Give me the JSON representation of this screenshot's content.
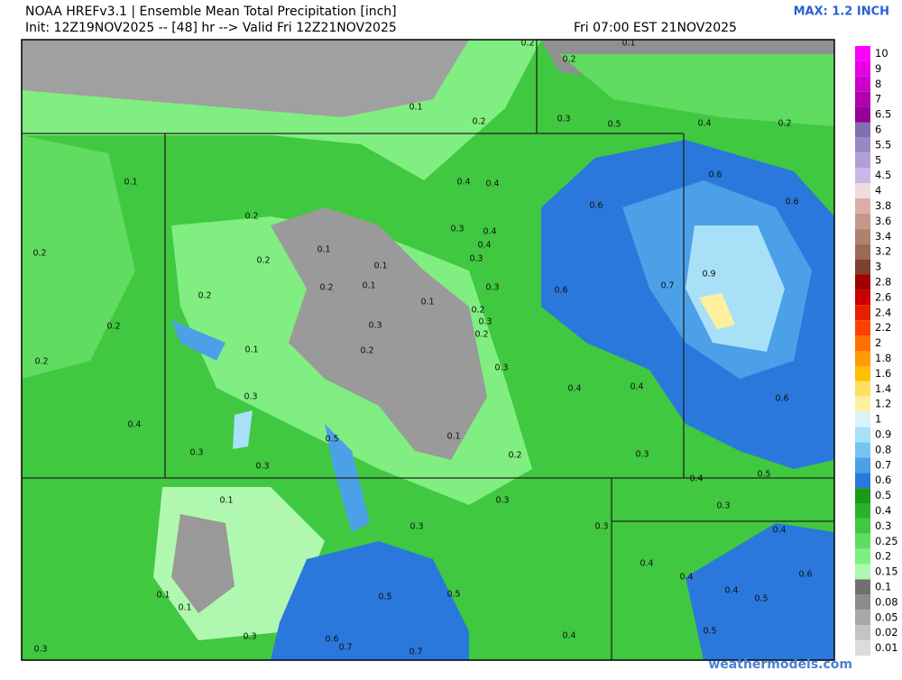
{
  "header": {
    "title": "NOAA HREFv3.1 | Ensemble Mean Total Precipitation [inch]",
    "init": "Init: 12Z19NOV2025 -- [48] hr --> Valid Fri 12Z21NOV2025",
    "valid_local": "Fri 07:00 EST 21NOV2025",
    "max": "MAX: 1.2 INCH"
  },
  "legend": {
    "levels": [
      10,
      9,
      8,
      7,
      6.5,
      6,
      5.5,
      5,
      4.5,
      4,
      3.8,
      3.6,
      3.4,
      3.2,
      3,
      2.8,
      2.6,
      2.4,
      2.2,
      2,
      1.8,
      1.6,
      1.4,
      1.2,
      1,
      0.9,
      0.8,
      0.7,
      0.6,
      0.5,
      0.4,
      0.3,
      0.25,
      0.2,
      0.15,
      0.1,
      0.08,
      0.05,
      0.02,
      0.01
    ],
    "colors": [
      "#ff00ff",
      "#e600e6",
      "#cc00cc",
      "#b000b0",
      "#960096",
      "#8070b0",
      "#9988c8",
      "#b0a0d8",
      "#c8b8e8",
      "#f0dcdc",
      "#d8b0a8",
      "#c49888",
      "#b08070",
      "#9c6858",
      "#804030",
      "#a00000",
      "#c80000",
      "#e62000",
      "#ff4000",
      "#ff7000",
      "#ff9a00",
      "#ffc000",
      "#ffe060",
      "#fff0a0",
      "#d8f4ff",
      "#a8e0f8",
      "#78c4f0",
      "#4ca0e8",
      "#2a78dc",
      "#1a9a1a",
      "#28b428",
      "#40c840",
      "#60dc60",
      "#80ee80",
      "#b0f8b0",
      "#707070",
      "#8c8c8c",
      "#a8a8a8",
      "#c4c4c4",
      "#dcdcdc"
    ]
  },
  "map_labels": [
    0.2,
    0.1,
    0.2,
    0.1,
    0.2,
    0.3,
    0.5,
    0.4,
    0.2,
    0.1,
    0.4,
    0.4,
    0.6,
    0.6,
    0.6,
    0.2,
    0.3,
    0.4,
    0.4,
    0.2,
    0.1,
    0.3,
    0.2,
    0.1,
    0.9,
    0.2,
    0.2,
    0.1,
    0.3,
    0.7,
    0.6,
    0.1,
    0.2,
    0.3,
    0.2,
    0.3,
    0.2,
    0.1,
    0.2,
    0.2,
    0.3,
    0.4,
    0.4,
    0.6,
    0.3,
    0.4,
    0.1,
    0.5,
    0.3,
    0.2,
    0.3,
    0.3,
    0.5,
    0.4,
    0.1,
    0.3,
    0.3,
    0.3,
    0.3,
    0.4,
    0.4,
    0.4,
    0.6,
    0.4,
    0.1,
    0.5,
    0.5,
    0.5,
    0.1,
    0.3,
    0.6,
    0.7,
    0.7,
    0.4,
    0.5,
    0.3
  ],
  "footer": "weathermodels.com"
}
